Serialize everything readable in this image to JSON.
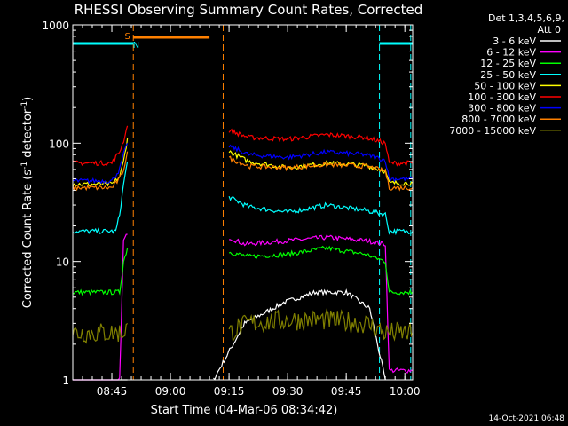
{
  "chart_data": {
    "type": "line",
    "title": "RHESSI Observing Summary Count Rates, Corrected",
    "xlabel": "Start Time (04-Mar-06 08:34:42)",
    "ylabel": "Corrected Count Rate (s⁻¹ detector⁻¹)",
    "ylabel_parts": {
      "pre": "Corrected Count Rate (s",
      "sup1": "-1",
      "mid": " detector",
      "sup2": "-1",
      "post": ")"
    },
    "y_scale": "log",
    "xlim_minutes_since_0835": [
      0,
      87
    ],
    "ylim": [
      1,
      1000
    ],
    "x_ticks": [
      "08:45",
      "09:00",
      "09:15",
      "09:30",
      "09:45",
      "10:00"
    ],
    "x_tick_minutes_since_0835": [
      10,
      25,
      40,
      55,
      70,
      85
    ],
    "y_ticks": [
      "1",
      "10",
      "100",
      "1000"
    ],
    "y_tick_values": [
      1,
      10,
      100,
      1000
    ],
    "legend_header": [
      "Det 1,3,4,5,6,9,",
      "Att 0"
    ],
    "legend_position": "right",
    "series": [
      {
        "name": "3 - 6 keV",
        "color": "#ffffff",
        "segments": [
          [
            [
              0,
              1.0
            ],
            [
              14,
              1.0
            ]
          ],
          [
            [
              36,
              1.0
            ],
            [
              44,
              3.0
            ],
            [
              54,
              4.5
            ],
            [
              62,
              5.5
            ],
            [
              70,
              5.5
            ],
            [
              76,
              4.0
            ],
            [
              80,
              1.0
            ]
          ]
        ]
      },
      {
        "name": "6 - 12 keV",
        "color": "#ff00ff",
        "segments": [
          [
            [
              0,
              1.0
            ],
            [
              12,
              1.0
            ],
            [
              13,
              15
            ],
            [
              14,
              17
            ]
          ],
          [
            [
              40,
              16
            ],
            [
              44,
              14
            ],
            [
              55,
              15
            ],
            [
              65,
              16
            ],
            [
              75,
              15
            ],
            [
              80,
              14
            ],
            [
              81,
              1.2
            ],
            [
              87,
              1.2
            ]
          ]
        ]
      },
      {
        "name": "12 - 25 keV",
        "color": "#00ff00",
        "segments": [
          [
            [
              0,
              5.5
            ],
            [
              12,
              5.5
            ],
            [
              13,
              10
            ],
            [
              14,
              13
            ]
          ],
          [
            [
              40,
              12
            ],
            [
              45,
              11
            ],
            [
              55,
              11.5
            ],
            [
              65,
              13
            ],
            [
              75,
              11.5
            ],
            [
              80,
              10
            ],
            [
              81,
              5.5
            ],
            [
              87,
              5.5
            ]
          ]
        ]
      },
      {
        "name": "25 - 50 keV",
        "color": "#00ffff",
        "segments": [
          [
            [
              0,
              18
            ],
            [
              11,
              18
            ],
            [
              12,
              25
            ],
            [
              13,
              45
            ],
            [
              14,
              70
            ]
          ],
          [
            [
              40,
              35
            ],
            [
              45,
              29
            ],
            [
              55,
              26
            ],
            [
              65,
              30
            ],
            [
              75,
              27
            ],
            [
              80,
              25
            ],
            [
              81,
              18
            ],
            [
              87,
              18
            ]
          ]
        ]
      },
      {
        "name": "50 - 100 keV",
        "color": "#ffff00",
        "segments": [
          [
            [
              0,
              45
            ],
            [
              10,
              45
            ],
            [
              12,
              52
            ],
            [
              13,
              70
            ],
            [
              14,
              110
            ]
          ],
          [
            [
              40,
              85
            ],
            [
              45,
              70
            ],
            [
              55,
              62
            ],
            [
              65,
              68
            ],
            [
              75,
              65
            ],
            [
              80,
              58
            ],
            [
              81,
              46
            ],
            [
              87,
              46
            ]
          ]
        ]
      },
      {
        "name": "100 - 300 keV",
        "color": "#ff0000",
        "segments": [
          [
            [
              0,
              68
            ],
            [
              10,
              68
            ],
            [
              12,
              85
            ],
            [
              13,
              105
            ],
            [
              14,
              140
            ]
          ],
          [
            [
              40,
              128
            ],
            [
              45,
              112
            ],
            [
              55,
              108
            ],
            [
              65,
              118
            ],
            [
              75,
              112
            ],
            [
              80,
              100
            ],
            [
              81,
              68
            ],
            [
              87,
              68
            ]
          ]
        ]
      },
      {
        "name": "300 - 800 keV",
        "color": "#0000ff",
        "segments": [
          [
            [
              0,
              48
            ],
            [
              10,
              48
            ],
            [
              12,
              60
            ],
            [
              13,
              80
            ],
            [
              14,
              100
            ]
          ],
          [
            [
              40,
              95
            ],
            [
              45,
              80
            ],
            [
              55,
              76
            ],
            [
              65,
              84
            ],
            [
              75,
              80
            ],
            [
              80,
              72
            ],
            [
              81,
              50
            ],
            [
              87,
              50
            ]
          ]
        ]
      },
      {
        "name": "800 - 7000 keV",
        "color": "#ff8000",
        "segments": [
          [
            [
              0,
              42
            ],
            [
              10,
              42
            ],
            [
              12,
              50
            ],
            [
              13,
              60
            ],
            [
              14,
              85
            ]
          ],
          [
            [
              40,
              75
            ],
            [
              45,
              64
            ],
            [
              55,
              62
            ],
            [
              65,
              66
            ],
            [
              75,
              64
            ],
            [
              80,
              58
            ],
            [
              81,
              42
            ],
            [
              87,
              42
            ]
          ]
        ]
      },
      {
        "name": "7000 - 15000 keV",
        "color": "#808000",
        "segments": [
          [
            [
              0,
              2.5
            ],
            [
              12,
              2.5
            ],
            [
              13,
              2.5
            ],
            [
              14,
              3.0
            ]
          ],
          [
            [
              40,
              2.5
            ],
            [
              45,
              3.0
            ],
            [
              55,
              3.2
            ],
            [
              65,
              3.2
            ],
            [
              75,
              3.0
            ],
            [
              80,
              2.5
            ],
            [
              87,
              2.5
            ]
          ]
        ]
      }
    ],
    "annotations": {
      "spans": [
        {
          "label": "",
          "color": "#00ffff",
          "from": 0,
          "to": 15.5
        },
        {
          "label": "",
          "color": "#ff8000",
          "from": 15.5,
          "to": 35
        },
        {
          "label": "",
          "color": "#00ffff",
          "from": 78.5,
          "to": 87
        }
      ],
      "vlines": [
        {
          "at": 15.5,
          "color": "#ff8000"
        },
        {
          "at": 38.5,
          "color": "#ff8000"
        },
        {
          "at": 78.5,
          "color": "#00ffff"
        },
        {
          "at": 86.5,
          "color": "#00ffff"
        }
      ],
      "flags": [
        {
          "label": "S",
          "color": "#ff8000",
          "at": 14.0
        },
        {
          "label": "N",
          "color": "#00ffff",
          "at": 16.2
        }
      ]
    },
    "timestamp": "14-Oct-2021 06:48"
  }
}
